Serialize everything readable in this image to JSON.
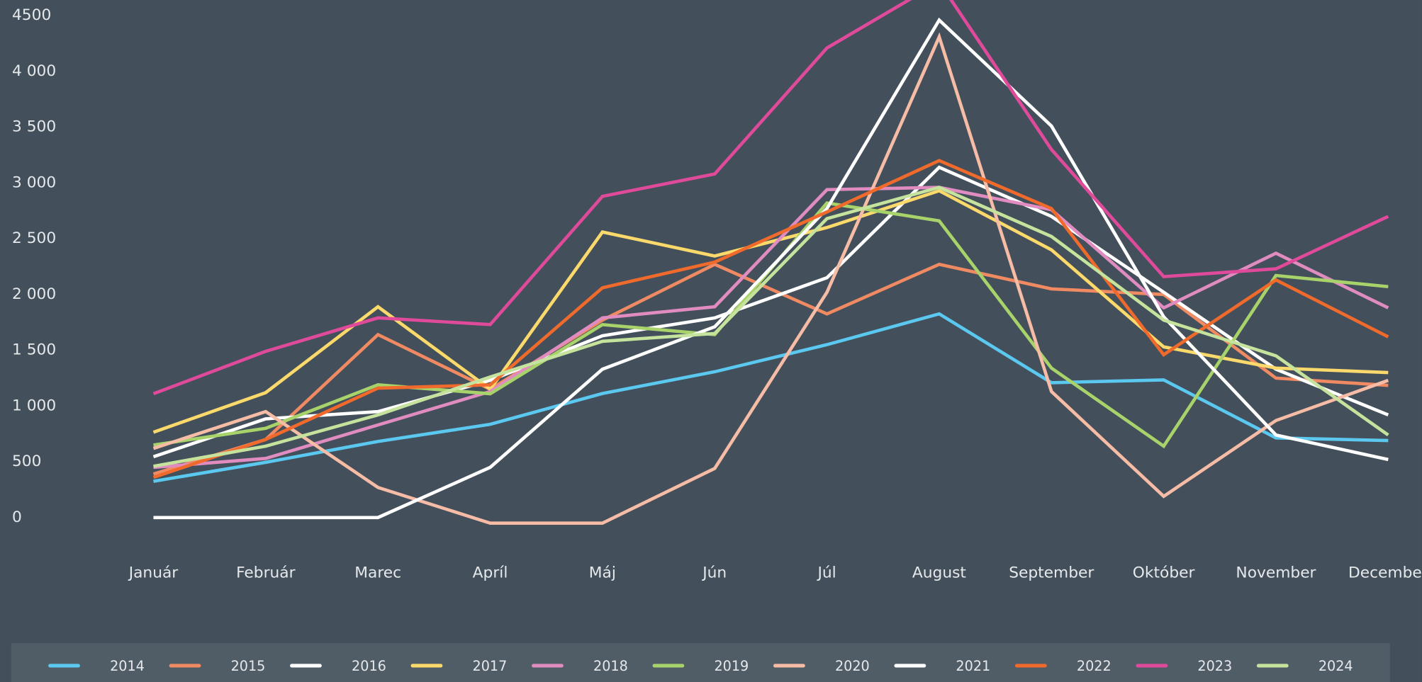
{
  "chart_data": {
    "type": "line",
    "categories": [
      "Január",
      "Február",
      "Marec",
      "Apríl",
      "Máj",
      "Jún",
      "Júl",
      "August",
      "September",
      "Október",
      "November",
      "December"
    ],
    "ylim": [
      -500,
      4640
    ],
    "yticks": [
      0,
      500,
      {
        "value": 1000,
        "label": "1 000"
      },
      {
        "value": 1500,
        "label": "1 500"
      },
      {
        "value": 2000,
        "label": "2 000"
      },
      {
        "value": 2500,
        "label": "2 500"
      },
      {
        "value": 3000,
        "label": "3 000"
      },
      {
        "value": 3500,
        "label": "3 500"
      },
      {
        "value": 4000,
        "label": "4 000"
      },
      4500
    ],
    "grid": false,
    "legend": "bottom",
    "series": [
      {
        "name": "2014",
        "color": "#5bc8f0",
        "values": [
          325,
          495,
          682,
          836,
          1112,
          1307,
          1550,
          1826,
          1209,
          1234,
          714,
          690
        ]
      },
      {
        "name": "2015",
        "color": "#f08a63",
        "values": [
          390,
          700,
          1640,
          1150,
          1770,
          2270,
          1826,
          2270,
          2050,
          2000,
          1250,
          1185
        ]
      },
      {
        "name": "2016",
        "color": "#ffffff",
        "values": [
          545,
          885,
          950,
          1230,
          1630,
          1790,
          2150,
          3140,
          2700,
          2020,
          1330,
          920
        ]
      },
      {
        "name": "2017",
        "color": "#fcd96b",
        "values": [
          765,
          1120,
          1890,
          1150,
          2560,
          2345,
          2600,
          2930,
          2400,
          1530,
          1340,
          1300
        ]
      },
      {
        "name": "2018",
        "color": "#e08cc1",
        "values": [
          450,
          530,
          830,
          1130,
          1790,
          1890,
          2940,
          2960,
          2760,
          1880,
          2370,
          1880
        ]
      },
      {
        "name": "2019",
        "color": "#a8d36b",
        "values": [
          650,
          800,
          1190,
          1110,
          1730,
          1640,
          2820,
          2660,
          1340,
          640,
          2170,
          2070
        ]
      },
      {
        "name": "2020",
        "color": "#f7bca6",
        "values": [
          620,
          950,
          270,
          -50,
          -50,
          440,
          2020,
          4310,
          1130,
          190,
          870,
          1230
        ]
      },
      {
        "name": "2021",
        "color": "#ffffff",
        "values": [
          0,
          0,
          0,
          450,
          1330,
          1710,
          2770,
          4460,
          3510,
          1800,
          740,
          520
        ]
      },
      {
        "name": "2022",
        "color": "#f06a2c",
        "values": [
          360,
          700,
          1160,
          1190,
          2060,
          2290,
          2740,
          3200,
          2770,
          1460,
          2130,
          1620
        ]
      },
      {
        "name": "2023",
        "color": "#e04a9a",
        "values": [
          1110,
          1490,
          1790,
          1730,
          2880,
          3080,
          4210,
          4800,
          3300,
          2160,
          2230,
          2700
        ]
      },
      {
        "name": "2024",
        "color": "#c5e39c",
        "values": [
          460,
          640,
          920,
          1260,
          1580,
          1650,
          2680,
          2960,
          2520,
          1770,
          1450,
          740
        ]
      }
    ]
  }
}
